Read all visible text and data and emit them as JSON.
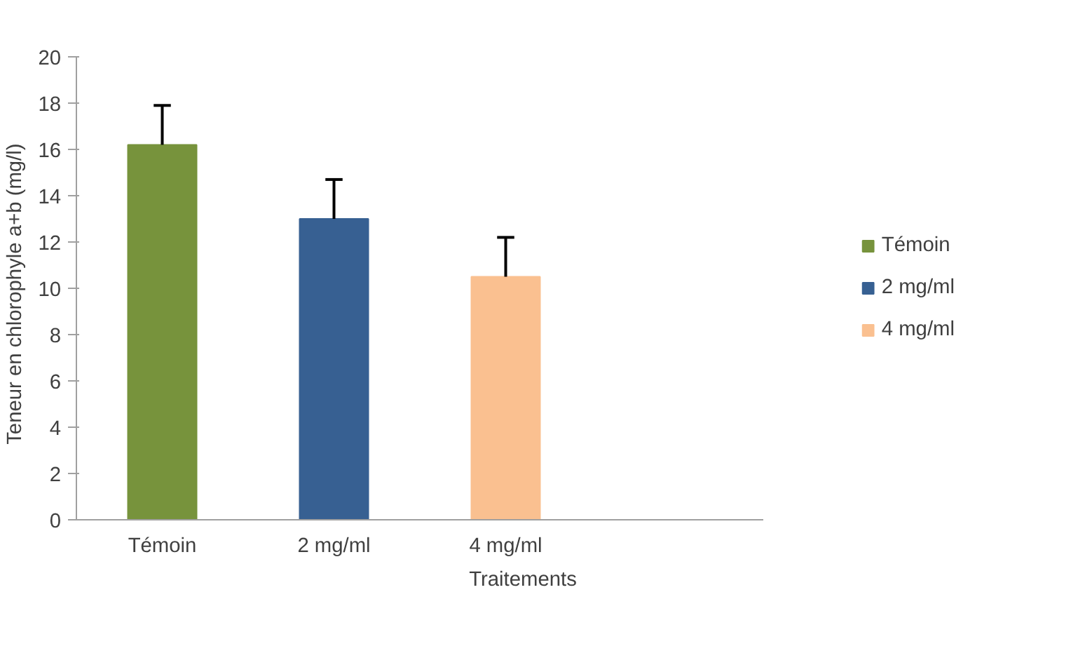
{
  "chart_data": {
    "type": "bar",
    "xlabel": "Traitements",
    "ylabel": "Teneur en chlorophyle  a+b  (mg/l)",
    "categories": [
      "Témoin",
      "2 mg/ml",
      "4 mg/ml",
      null
    ],
    "series": [
      {
        "name": "Témoin",
        "color": "#77933c",
        "values": [
          16.2,
          null,
          null,
          null
        ],
        "errors": [
          [
            16.2,
            17.9
          ],
          null,
          null,
          null
        ]
      },
      {
        "name": "2 mg/ml",
        "color": "#376092",
        "values": [
          null,
          13.0,
          null,
          null
        ],
        "errors": [
          null,
          [
            13.0,
            14.7
          ],
          null,
          null
        ]
      },
      {
        "name": "4 mg/ml",
        "color": "#fac090",
        "values": [
          null,
          null,
          10.5,
          null
        ],
        "errors": [
          null,
          null,
          [
            10.5,
            12.2
          ],
          null
        ]
      }
    ],
    "ylim": [
      0,
      20
    ],
    "yticks": [
      0,
      2,
      4,
      6,
      8,
      10,
      12,
      14,
      16,
      18,
      20
    ],
    "grid": false,
    "legend": "right"
  }
}
